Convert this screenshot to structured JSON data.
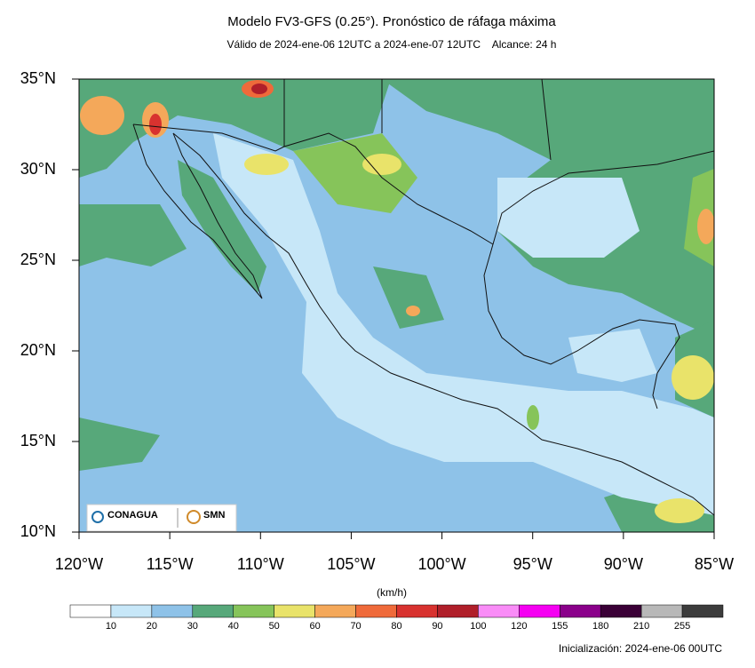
{
  "header": {
    "title": "Modelo FV3-GFS (0.25°). Pronóstico de ráfaga máxima",
    "subtitle": "Válido de 2024-ene-06 12UTC a 2024-ene-07 12UTC    Alcance: 24 h"
  },
  "map": {
    "xlim": [
      -120,
      -85
    ],
    "ylim": [
      10,
      35
    ],
    "xticks": [
      {
        "value": -120,
        "label": "120°W"
      },
      {
        "value": -115,
        "label": "115°W"
      },
      {
        "value": -110,
        "label": "110°W"
      },
      {
        "value": -105,
        "label": "105°W"
      },
      {
        "value": -100,
        "label": "100°W"
      },
      {
        "value": -95,
        "label": "95°W"
      },
      {
        "value": -90,
        "label": "90°W"
      },
      {
        "value": -85,
        "label": "85°W"
      }
    ],
    "yticks": [
      {
        "value": 10,
        "label": "10°N"
      },
      {
        "value": 15,
        "label": "15°N"
      },
      {
        "value": 20,
        "label": "20°N"
      },
      {
        "value": 25,
        "label": "25°N"
      },
      {
        "value": 30,
        "label": "30°N"
      },
      {
        "value": 35,
        "label": "35°N"
      }
    ]
  },
  "colorbar": {
    "unit": "(km/h)",
    "ticks": [
      10,
      20,
      30,
      40,
      50,
      60,
      70,
      80,
      90,
      100,
      120,
      155,
      180,
      210,
      255
    ],
    "colors": [
      "#ffffff",
      "#c7e7f8",
      "#8ec2e8",
      "#57a87a",
      "#86c45a",
      "#e9e36a",
      "#f4a85a",
      "#ef6a3a",
      "#d8322f",
      "#b01f2a",
      "#f98cf7",
      "#f500f2",
      "#8a008a",
      "#3a0036",
      "#b8b8b8",
      "#3c3c3c"
    ]
  },
  "logos": {
    "left": "CONAGUA",
    "right": "SMN"
  },
  "footer": "Inicialización: 2024-ene-06 00UTC"
}
